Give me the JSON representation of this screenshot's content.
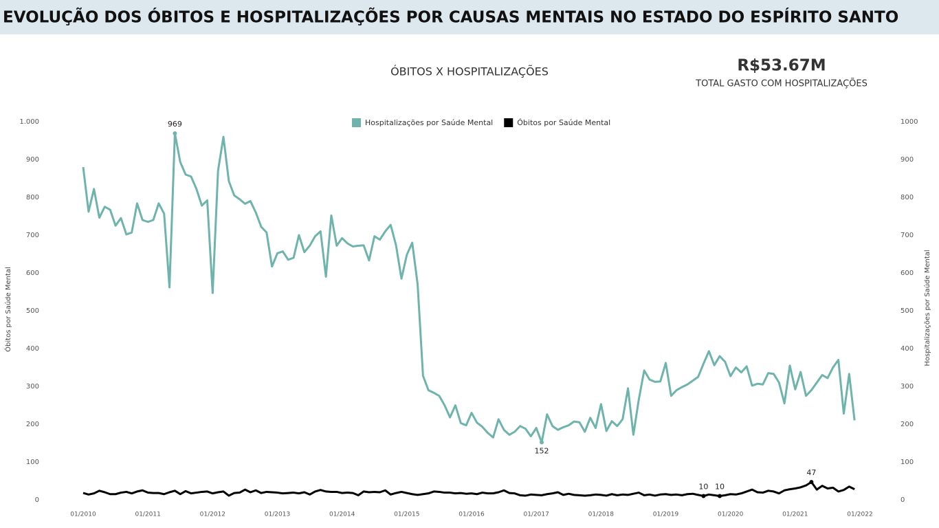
{
  "header": {
    "title": "EVOLUÇÃO DOS ÓBITOS E HOSPITALIZAÇÕES POR CAUSAS MENTAIS NO ESTADO DO ESPÍRITO SANTO"
  },
  "kpi": {
    "value": "R$53.67M",
    "label": "TOTAL GASTO COM HOSPITALIZAÇÕES"
  },
  "chart_data": {
    "type": "line",
    "title": "ÓBITOS X HOSPITALIZAÇÕES",
    "y_label": "Óbitos por Saúde Mental",
    "y2_label": "Hospitalizações por Saúde Mental",
    "legend": "top",
    "grid": false,
    "categories": [
      "01/2010",
      null,
      null,
      null,
      null,
      null,
      null,
      null,
      null,
      null,
      null,
      null,
      "01/2011",
      null,
      null,
      null,
      null,
      null,
      null,
      null,
      null,
      null,
      null,
      null,
      "01/2012",
      null,
      null,
      null,
      null,
      null,
      null,
      null,
      null,
      null,
      null,
      null,
      "01/2013",
      null,
      null,
      null,
      null,
      null,
      null,
      null,
      null,
      null,
      null,
      null,
      "01/2014",
      null,
      null,
      null,
      null,
      null,
      null,
      null,
      null,
      null,
      null,
      null,
      "01/2015",
      null,
      null,
      null,
      null,
      null,
      null,
      null,
      null,
      null,
      null,
      null,
      "01/2016",
      null,
      null,
      null,
      null,
      null,
      null,
      null,
      null,
      null,
      null,
      null,
      "01/2017",
      null,
      null,
      null,
      null,
      null,
      null,
      null,
      null,
      null,
      null,
      null,
      "01/2018",
      null,
      null,
      null,
      null,
      null,
      null,
      null,
      null,
      null,
      null,
      null,
      "01/2019",
      null,
      null,
      null,
      null,
      null,
      null,
      null,
      null,
      null,
      null,
      null,
      "01/2020",
      null,
      null,
      null,
      null,
      null,
      null,
      null,
      null,
      null,
      null,
      null,
      "01/2021",
      null,
      null,
      null,
      null,
      null,
      null,
      null,
      null,
      null,
      null,
      null,
      "01/2022"
    ],
    "ylim": [
      0,
      1000
    ],
    "yticks": [
      0,
      100,
      200,
      300,
      400,
      500,
      600,
      700,
      800,
      900,
      {
        "value": 1000,
        "label": "1.000"
      }
    ],
    "y2lim": [
      0,
      1000
    ],
    "y2ticks": [
      0,
      100,
      200,
      300,
      400,
      500,
      600,
      700,
      800,
      900,
      1000
    ],
    "series": [
      {
        "name": "Hospitalizações por Saúde Mental",
        "color": "#6fb3ad",
        "axis": "y2",
        "values": [
          880,
          762,
          822,
          746,
          775,
          767,
          725,
          745,
          702,
          707,
          784,
          740,
          735,
          740,
          784,
          757,
          562,
          969,
          893,
          860,
          855,
          822,
          778,
          792,
          547,
          870,
          960,
          843,
          805,
          795,
          783,
          790,
          760,
          722,
          707,
          617,
          652,
          657,
          635,
          640,
          700,
          655,
          672,
          697,
          710,
          590,
          752,
          672,
          692,
          678,
          670,
          672,
          673,
          633,
          697,
          688,
          710,
          727,
          673,
          585,
          648,
          680,
          570,
          328,
          290,
          283,
          275,
          250,
          218,
          250,
          203,
          197,
          230,
          204,
          193,
          177,
          165,
          213,
          185,
          172,
          180,
          195,
          188,
          168,
          190,
          152,
          226,
          195,
          185,
          192,
          197,
          207,
          205,
          180,
          217,
          190,
          253,
          182,
          208,
          195,
          213,
          295,
          172,
          265,
          342,
          318,
          312,
          313,
          362,
          275,
          290,
          298,
          305,
          315,
          325,
          360,
          393,
          356,
          380,
          365,
          327,
          350,
          337,
          353,
          302,
          307,
          305,
          335,
          333,
          310,
          255,
          355,
          292,
          338,
          275,
          290,
          310,
          330,
          322,
          350,
          370,
          228,
          333,
          210,
          null
        ]
      },
      {
        "name": "Óbitos por Saúde Mental",
        "color": "#000000",
        "axis": "y",
        "values": [
          18,
          14,
          17,
          24,
          20,
          15,
          15,
          19,
          21,
          17,
          22,
          25,
          19,
          18,
          18,
          15,
          20,
          24,
          15,
          23,
          17,
          19,
          21,
          22,
          17,
          20,
          22,
          11,
          18,
          19,
          27,
          20,
          25,
          18,
          21,
          20,
          19,
          17,
          18,
          19,
          17,
          20,
          14,
          22,
          26,
          22,
          21,
          21,
          18,
          19,
          18,
          12,
          22,
          20,
          21,
          20,
          25,
          14,
          18,
          21,
          18,
          15,
          13,
          15,
          17,
          22,
          21,
          19,
          19,
          17,
          18,
          16,
          17,
          15,
          19,
          17,
          17,
          20,
          25,
          18,
          17,
          12,
          11,
          14,
          13,
          12,
          15,
          17,
          20,
          13,
          16,
          13,
          12,
          11,
          12,
          14,
          13,
          11,
          15,
          12,
          14,
          13,
          16,
          19,
          12,
          14,
          11,
          14,
          15,
          13,
          14,
          12,
          15,
          16,
          13,
          10,
          14,
          12,
          10,
          12,
          15,
          14,
          17,
          22,
          27,
          20,
          19,
          24,
          22,
          17,
          25,
          28,
          30,
          33,
          38,
          47,
          27,
          37,
          30,
          32,
          22,
          26,
          35,
          28,
          null
        ]
      }
    ]
  }
}
